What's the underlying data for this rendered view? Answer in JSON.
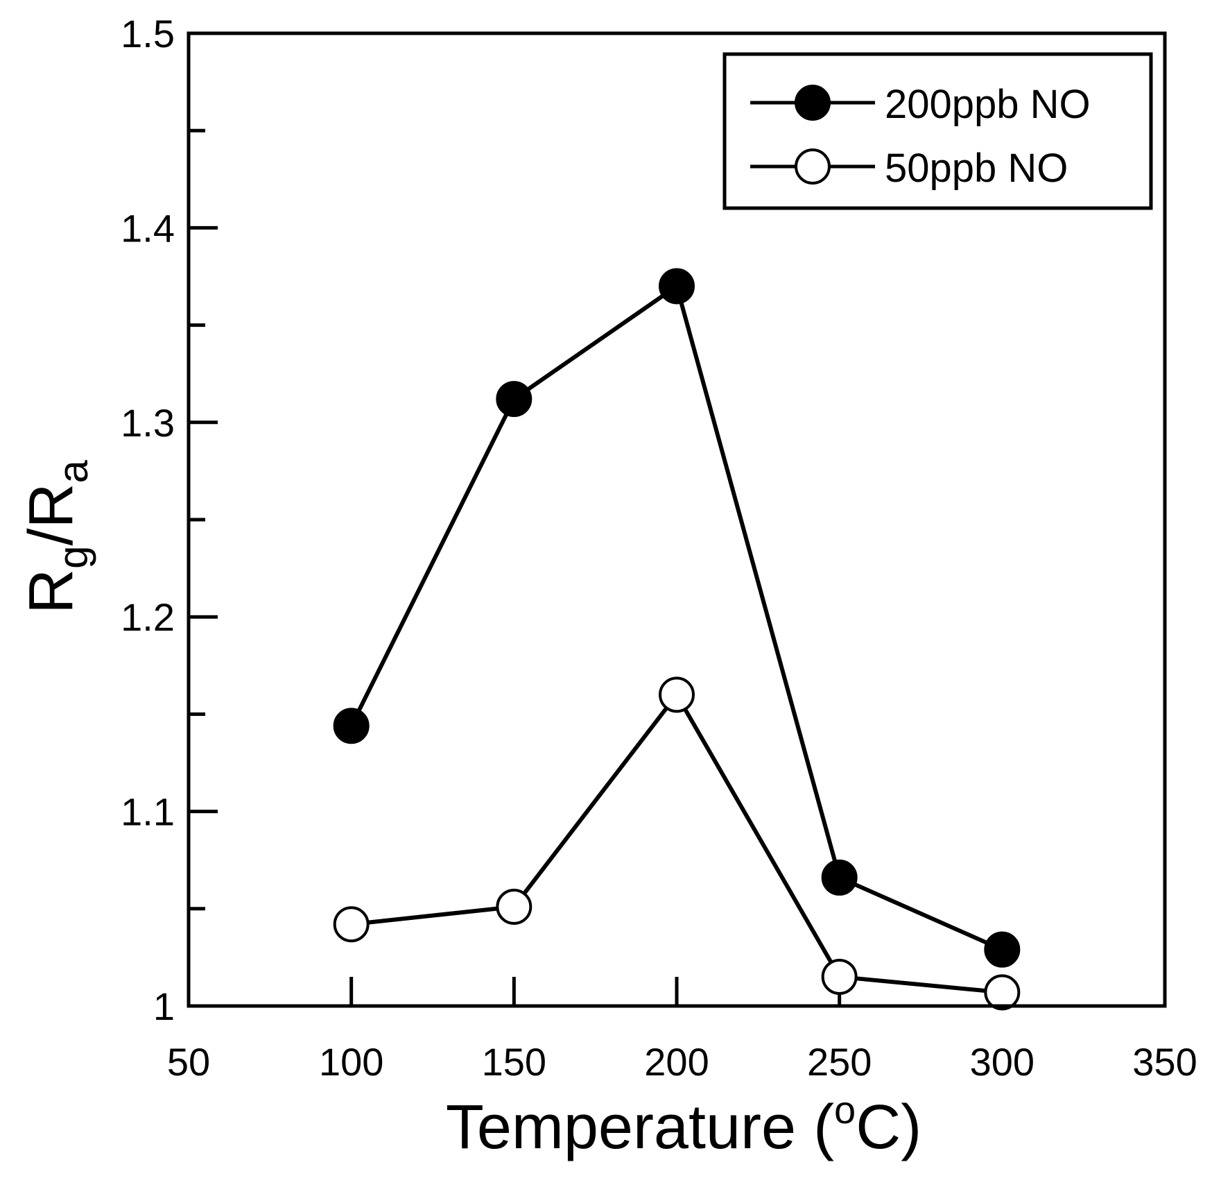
{
  "chart_data": {
    "type": "line",
    "xlabel": {
      "text": "Temperature (",
      "sup": "o",
      "tail": "C)"
    },
    "ylabel": {
      "main": "R",
      "sub1": "g",
      "mid": "/R",
      "sub2": "a"
    },
    "xlim": [
      50,
      350
    ],
    "ylim": [
      1.0,
      1.5
    ],
    "xticks": [
      50,
      100,
      150,
      200,
      250,
      300,
      350
    ],
    "xtick_labels": [
      "50",
      "100",
      "150",
      "200",
      "250",
      "300",
      "350"
    ],
    "yticks": [
      1.0,
      1.1,
      1.2,
      1.3,
      1.4,
      1.5
    ],
    "ytick_labels": [
      "1",
      "1.1",
      "1.2",
      "1.3",
      "1.4",
      "1.5"
    ],
    "y_minor_step": 0.05,
    "legend_position": "top-right",
    "series": [
      {
        "name": "200ppb NO",
        "marker": "filled-circle",
        "color": "#000000",
        "x": [
          100,
          150,
          200,
          250,
          300
        ],
        "y": [
          1.144,
          1.312,
          1.37,
          1.066,
          1.029
        ]
      },
      {
        "name": "50ppb NO",
        "marker": "open-circle",
        "color": "#000000",
        "x": [
          100,
          150,
          200,
          250,
          300
        ],
        "y": [
          1.042,
          1.051,
          1.16,
          1.015,
          1.007
        ]
      }
    ]
  }
}
